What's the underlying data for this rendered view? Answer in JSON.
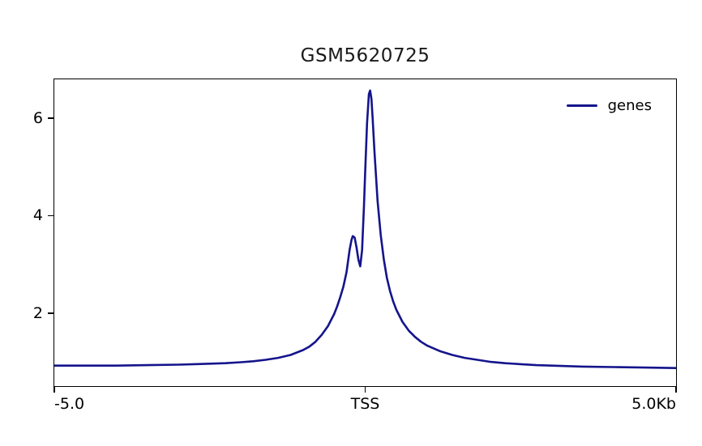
{
  "chart_data": {
    "type": "line",
    "title": "GSM5620725",
    "xlabel": "",
    "ylabel": "",
    "grid": false,
    "legend_position": "upper right",
    "xlim": [
      -5000,
      5000
    ],
    "ylim": [
      0.5,
      6.8
    ],
    "xticks": [
      {
        "value": -5000,
        "label": "-5.0"
      },
      {
        "value": 0,
        "label": "TSS"
      },
      {
        "value": 5000,
        "label": "5.0Kb"
      }
    ],
    "yticks": [
      {
        "value": 2,
        "label": "2"
      },
      {
        "value": 4,
        "label": "4"
      },
      {
        "value": 6,
        "label": "6"
      }
    ],
    "series": [
      {
        "name": "genes",
        "color": "#14148c",
        "x": [
          -5000,
          -4500,
          -4000,
          -3500,
          -3000,
          -2750,
          -2500,
          -2250,
          -2000,
          -1800,
          -1600,
          -1400,
          -1200,
          -1000,
          -900,
          -800,
          -700,
          -600,
          -500,
          -450,
          -400,
          -350,
          -300,
          -250,
          -220,
          -200,
          -170,
          -140,
          -110,
          -80,
          -50,
          -20,
          0,
          30,
          60,
          80,
          100,
          120,
          150,
          200,
          250,
          300,
          350,
          400,
          450,
          500,
          600,
          700,
          800,
          900,
          1000,
          1200,
          1400,
          1600,
          1800,
          2000,
          2250,
          2500,
          2750,
          3000,
          3500,
          4000,
          4500,
          5000
        ],
        "y": [
          0.92,
          0.92,
          0.92,
          0.93,
          0.94,
          0.95,
          0.96,
          0.97,
          0.99,
          1.01,
          1.04,
          1.08,
          1.14,
          1.24,
          1.31,
          1.41,
          1.55,
          1.73,
          1.98,
          2.14,
          2.33,
          2.55,
          2.84,
          3.3,
          3.5,
          3.58,
          3.55,
          3.35,
          3.1,
          2.96,
          3.3,
          4.2,
          4.9,
          5.9,
          6.5,
          6.57,
          6.4,
          6.0,
          5.3,
          4.3,
          3.6,
          3.1,
          2.72,
          2.45,
          2.24,
          2.07,
          1.82,
          1.64,
          1.51,
          1.41,
          1.33,
          1.22,
          1.14,
          1.08,
          1.04,
          1.0,
          0.97,
          0.95,
          0.93,
          0.92,
          0.9,
          0.89,
          0.88,
          0.87
        ]
      }
    ]
  }
}
